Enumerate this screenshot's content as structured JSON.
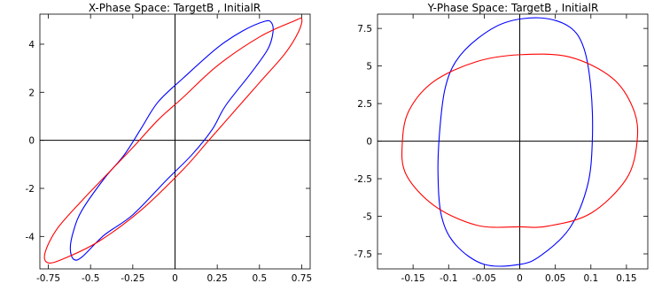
{
  "chart_data": [
    {
      "type": "line",
      "title": "X-Phase Space: TargetB , InitialR",
      "xlabel": "",
      "ylabel": "",
      "xlim": [
        -0.8,
        0.8
      ],
      "ylim": [
        -5.35,
        5.25
      ],
      "x_ticks": [
        -0.75,
        -0.5,
        -0.25,
        0,
        0.25,
        0.5,
        0.75
      ],
      "x_tick_labels": [
        "-0.75",
        "-0.5",
        "-0.25",
        "0",
        "0.25",
        "0.5",
        "0.75"
      ],
      "y_ticks": [
        -4,
        -2,
        0,
        2,
        4
      ],
      "y_tick_labels": [
        "-4",
        "-2",
        "0",
        "2",
        "4"
      ],
      "grid": false,
      "series": [
        {
          "color": "#0000ff",
          "points": [
            [
              0.57,
              4.9
            ],
            [
              0.53,
              4.95
            ],
            [
              0.4,
              4.55
            ],
            [
              0.25,
              3.85
            ],
            [
              0.05,
              2.6
            ],
            [
              -0.1,
              1.6
            ],
            [
              -0.2,
              0.5
            ],
            [
              -0.3,
              -0.6
            ],
            [
              -0.42,
              -1.6
            ],
            [
              -0.55,
              -2.9
            ],
            [
              -0.6,
              -3.75
            ],
            [
              -0.62,
              -4.5
            ],
            [
              -0.6,
              -4.95
            ],
            [
              -0.55,
              -4.85
            ],
            [
              -0.42,
              -3.95
            ],
            [
              -0.25,
              -3.1
            ],
            [
              -0.05,
              -1.65
            ],
            [
              0.1,
              -0.6
            ],
            [
              0.22,
              0.45
            ],
            [
              0.3,
              1.45
            ],
            [
              0.45,
              2.8
            ],
            [
              0.55,
              3.8
            ],
            [
              0.58,
              4.5
            ],
            [
              0.57,
              4.9
            ]
          ]
        },
        {
          "color": "#ff0000",
          "points": [
            [
              0.75,
              5.05
            ],
            [
              0.7,
              4.95
            ],
            [
              0.5,
              4.3
            ],
            [
              0.25,
              3.1
            ],
            [
              0.05,
              1.8
            ],
            [
              -0.1,
              0.85
            ],
            [
              -0.25,
              -0.3
            ],
            [
              -0.4,
              -1.4
            ],
            [
              -0.55,
              -2.5
            ],
            [
              -0.7,
              -3.7
            ],
            [
              -0.77,
              -4.7
            ],
            [
              -0.75,
              -5.1
            ],
            [
              -0.65,
              -4.9
            ],
            [
              -0.45,
              -4.2
            ],
            [
              -0.2,
              -2.9
            ],
            [
              0.05,
              -1.2
            ],
            [
              0.2,
              0
            ],
            [
              0.35,
              1.2
            ],
            [
              0.5,
              2.4
            ],
            [
              0.65,
              3.6
            ],
            [
              0.73,
              4.5
            ],
            [
              0.75,
              5.05
            ]
          ]
        }
      ]
    },
    {
      "type": "line",
      "title": "Y-Phase Space: TargetB , InitialR",
      "xlabel": "",
      "ylabel": "",
      "xlim": [
        -0.2,
        0.18
      ],
      "ylim": [
        -8.5,
        8.45
      ],
      "x_ticks": [
        -0.15,
        -0.1,
        -0.05,
        0,
        0.05,
        0.1,
        0.15
      ],
      "x_tick_labels": [
        "-0.15",
        "-0.1",
        "-0.05",
        "0",
        "0.05",
        "0.1",
        "0.15"
      ],
      "y_ticks": [
        -7.5,
        -5,
        -2.5,
        0,
        2.5,
        5,
        7.5
      ],
      "y_tick_labels": [
        "-7.5",
        "-5",
        "-2.5",
        "0",
        "2.5",
        "5",
        "7.5"
      ],
      "grid": false,
      "series": [
        {
          "color": "#0000ff",
          "points": [
            [
              0.03,
              8.2
            ],
            [
              0.07,
              7.6
            ],
            [
              0.09,
              6.2
            ],
            [
              0.1,
              3.5
            ],
            [
              0.102,
              0
            ],
            [
              0.095,
              -3
            ],
            [
              0.07,
              -5.8
            ],
            [
              0.03,
              -7.6
            ],
            [
              0,
              -8.2
            ],
            [
              -0.05,
              -8.2
            ],
            [
              -0.09,
              -6.9
            ],
            [
              -0.11,
              -5
            ],
            [
              -0.115,
              -2
            ],
            [
              -0.112,
              1
            ],
            [
              -0.105,
              3.5
            ],
            [
              -0.09,
              5.3
            ],
            [
              -0.06,
              6.8
            ],
            [
              -0.02,
              7.9
            ],
            [
              0.03,
              8.2
            ]
          ]
        },
        {
          "color": "#ff0000",
          "points": [
            [
              0,
              5.75
            ],
            [
              0.07,
              5.6
            ],
            [
              0.13,
              4.2
            ],
            [
              0.16,
              2.1
            ],
            [
              0.165,
              0
            ],
            [
              0.15,
              -2.5
            ],
            [
              0.1,
              -4.8
            ],
            [
              0.04,
              -5.65
            ],
            [
              0,
              -5.7
            ],
            [
              -0.06,
              -5.6
            ],
            [
              -0.12,
              -4.3
            ],
            [
              -0.16,
              -2.2
            ],
            [
              -0.165,
              0
            ],
            [
              -0.155,
              2.1
            ],
            [
              -0.12,
              4
            ],
            [
              -0.06,
              5.3
            ],
            [
              0,
              5.75
            ]
          ]
        }
      ]
    }
  ]
}
